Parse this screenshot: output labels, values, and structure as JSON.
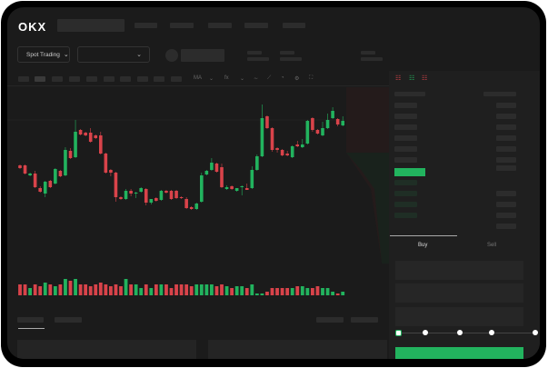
{
  "brand": {
    "logo_text": "OKX"
  },
  "header": {
    "market_selector": "Spot Trading",
    "chevron": "chevron-down-icon"
  },
  "toolbar": {
    "indicator_label": "MA",
    "fx_label": "fx",
    "icons": [
      "wave-icon",
      "ruler-icon",
      "camera-icon",
      "gear-icon",
      "fullscreen-icon"
    ]
  },
  "order_form": {
    "buy_tab": "Buy",
    "sell_tab": "Sell",
    "leverage_percent": 0
  },
  "colors": {
    "up": "#22b35e",
    "down": "#d9434a",
    "bg": "#1b1b1b"
  },
  "chart_data": {
    "type": "candlestick",
    "candles": [
      [
        68,
        69,
        64,
        65
      ],
      [
        68,
        69,
        58,
        59
      ],
      [
        57,
        60,
        56,
        59
      ],
      [
        59,
        62,
        43,
        44
      ],
      [
        43,
        45,
        38,
        39
      ],
      [
        37,
        51,
        33,
        50
      ],
      [
        51,
        52,
        43,
        44
      ],
      [
        48,
        65,
        47,
        64
      ],
      [
        62,
        63,
        55,
        56
      ],
      [
        57,
        88,
        56,
        85
      ],
      [
        84,
        87,
        75,
        76
      ],
      [
        77,
        118,
        76,
        105
      ],
      [
        107,
        108,
        101,
        102
      ],
      [
        104,
        105,
        100,
        101
      ],
      [
        104,
        109,
        93,
        94
      ],
      [
        101,
        102,
        97,
        98
      ],
      [
        101,
        105,
        80,
        81
      ],
      [
        81,
        82,
        59,
        60
      ],
      [
        63,
        64,
        56,
        60
      ],
      [
        60,
        61,
        28,
        33
      ],
      [
        33,
        34,
        30,
        31
      ],
      [
        31,
        42,
        30,
        40
      ],
      [
        40,
        42,
        34,
        37
      ],
      [
        37,
        39,
        32,
        38
      ],
      [
        39,
        44,
        38,
        43
      ],
      [
        42,
        43,
        24,
        27
      ],
      [
        27,
        31,
        25,
        31
      ],
      [
        32,
        33,
        28,
        29
      ],
      [
        30,
        41,
        29,
        40
      ],
      [
        40,
        41,
        37,
        38
      ],
      [
        40,
        41,
        30,
        31
      ],
      [
        40,
        41,
        31,
        32
      ],
      [
        33,
        34,
        31,
        32
      ],
      [
        31,
        33,
        20,
        21
      ],
      [
        22,
        23,
        19,
        20
      ],
      [
        20,
        27,
        19,
        26
      ],
      [
        28,
        60,
        27,
        57
      ],
      [
        58,
        63,
        57,
        62
      ],
      [
        63,
        76,
        62,
        71
      ],
      [
        70,
        71,
        60,
        61
      ],
      [
        66,
        70,
        43,
        44
      ],
      [
        42,
        46,
        41,
        44
      ],
      [
        45,
        46,
        41,
        42
      ],
      [
        40,
        43,
        39,
        43
      ],
      [
        45,
        46,
        35,
        45
      ],
      [
        43,
        48,
        41,
        41
      ],
      [
        43,
        67,
        42,
        63
      ],
      [
        63,
        80,
        62,
        78
      ],
      [
        78,
        135,
        77,
        120
      ],
      [
        122,
        123,
        108,
        109
      ],
      [
        109,
        110,
        83,
        85
      ],
      [
        87,
        88,
        82,
        85
      ],
      [
        85,
        86,
        78,
        79
      ],
      [
        81,
        84,
        78,
        79
      ],
      [
        77,
        90,
        76,
        89
      ],
      [
        91,
        95,
        88,
        89
      ],
      [
        88,
        97,
        87,
        91
      ],
      [
        92,
        118,
        91,
        117
      ],
      [
        120,
        121,
        105,
        107
      ],
      [
        107,
        108,
        102,
        103
      ],
      [
        101,
        116,
        100,
        109
      ],
      [
        109,
        125,
        108,
        118
      ],
      [
        120,
        132,
        119,
        128
      ],
      [
        119,
        120,
        111,
        113
      ],
      [
        112,
        122,
        111,
        117
      ]
    ],
    "volume": [
      6,
      6,
      4,
      6,
      5,
      7,
      6,
      5,
      6,
      9,
      8,
      9,
      6,
      6,
      5,
      6,
      7,
      6,
      5,
      6,
      5,
      9,
      6,
      6,
      4,
      6,
      4,
      6,
      6,
      6,
      4,
      6,
      6,
      6,
      5,
      6,
      6,
      6,
      6,
      5,
      6,
      5,
      4,
      5,
      5,
      4,
      6,
      1,
      1,
      2,
      4,
      4,
      4,
      4,
      4,
      5,
      5,
      4,
      4,
      5,
      4,
      4,
      2,
      1,
      2
    ]
  }
}
